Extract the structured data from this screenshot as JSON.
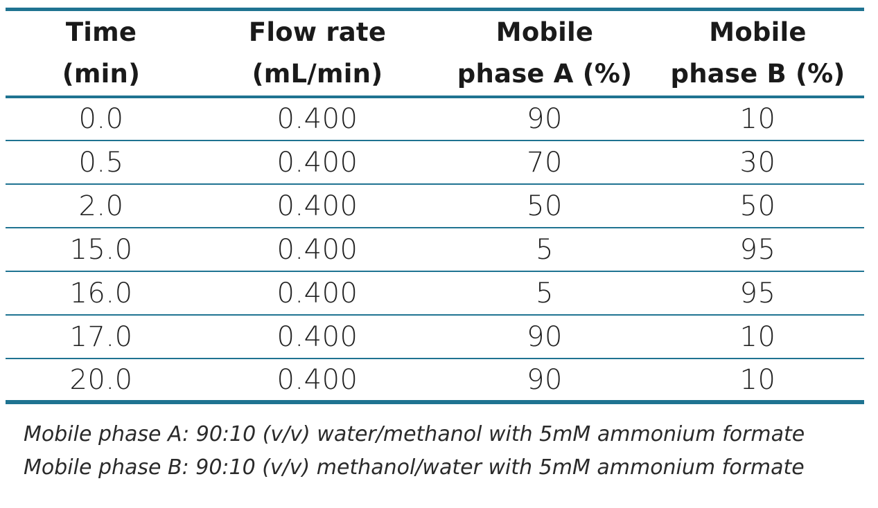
{
  "table": {
    "headers": [
      {
        "line1": "Time",
        "line2": "(min)"
      },
      {
        "line1": "Flow rate",
        "line2": "(mL/min)"
      },
      {
        "line1": "Mobile",
        "line2": "phase A (%)"
      },
      {
        "line1": "Mobile",
        "line2": "phase B (%)"
      }
    ],
    "rows": [
      [
        "0.0",
        "0.400",
        "90",
        "10"
      ],
      [
        "0.5",
        "0.400",
        "70",
        "30"
      ],
      [
        "2.0",
        "0.400",
        "50",
        "50"
      ],
      [
        "15.0",
        "0.400",
        "5",
        "95"
      ],
      [
        "16.0",
        "0.400",
        "5",
        "95"
      ],
      [
        "17.0",
        "0.400",
        "90",
        "10"
      ],
      [
        "20.0",
        "0.400",
        "90",
        "10"
      ]
    ]
  },
  "notes": {
    "phase_a": "Mobile phase A: 90:10 (v/v) water/methanol with 5mM ammonium formate",
    "phase_b": "Mobile phase B: 90:10 (v/v) methanol/water with 5mM ammonium formate"
  },
  "colors": {
    "rule": "#1f7391"
  }
}
